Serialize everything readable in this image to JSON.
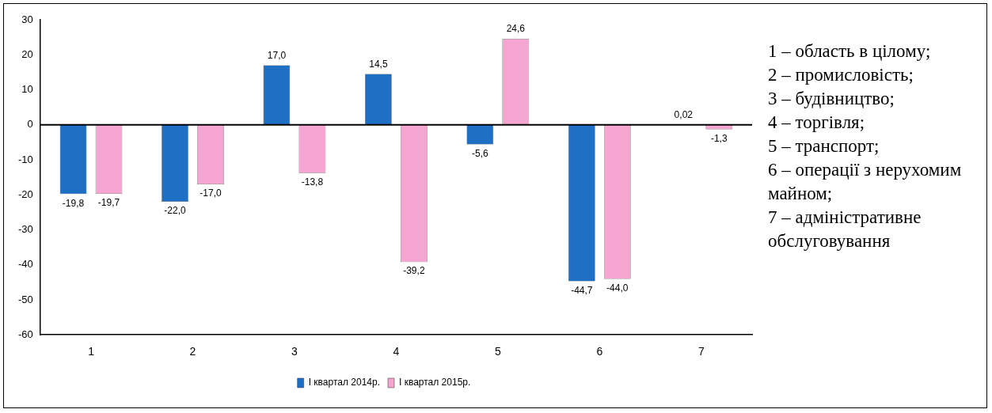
{
  "chart_data": {
    "type": "bar",
    "categories": [
      "1",
      "2",
      "3",
      "4",
      "5",
      "6",
      "7"
    ],
    "series": [
      {
        "name": "І квартал 2014р.",
        "color": "#1f6fc5",
        "values": [
          -19.8,
          -22.0,
          17.0,
          14.5,
          -5.6,
          -44.7,
          0.02
        ],
        "value_labels": [
          "-19,8",
          "-22,0",
          "17,0",
          "14,5",
          "-5,6",
          "-44,7",
          "0,02"
        ]
      },
      {
        "name": "І квартал 2015р.",
        "color": "#f4a6d0",
        "values": [
          -19.7,
          -17.0,
          -13.8,
          -39.2,
          24.6,
          -44.0,
          -1.3
        ],
        "value_labels": [
          "-19,7",
          "-17,0",
          "-13,8",
          "-39,2",
          "24,6",
          "-44,0",
          "-1,3"
        ]
      }
    ],
    "ylim": [
      -60,
      30
    ],
    "yticks": [
      -60,
      -50,
      -40,
      -30,
      -20,
      -10,
      0,
      10,
      20,
      30
    ],
    "grid": false,
    "legend": "bottom",
    "ref_lines": [
      {
        "axis": "y",
        "value": 0,
        "color": "#000000"
      }
    ],
    "annotations": [
      "1 – область в цілому;",
      "2 – промисловість;",
      "3 – будівництво;",
      "4 – торгівля;",
      "5 – транспорт;",
      "6 – операції з нерухомим майном;",
      "7 – адміністративне обслуговування"
    ]
  }
}
